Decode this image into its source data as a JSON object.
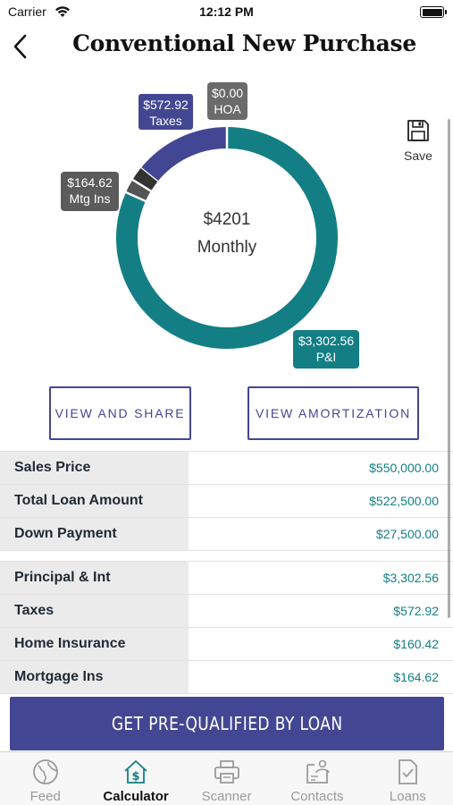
{
  "status_bar": {
    "carrier": "Carrier",
    "time": "12:12 PM"
  },
  "header": {
    "title": "Conventional New Purchase"
  },
  "chart_data": {
    "type": "pie",
    "style": "donut",
    "center_value": "$4201",
    "center_label": "Monthly",
    "slices": [
      {
        "label": "P&I",
        "value_text": "$3,302.56",
        "value": 3302.56,
        "color": "#137f85"
      },
      {
        "label": "Mtg Ins",
        "value_text": "$164.62",
        "value": 164.62,
        "color": "#555555"
      },
      {
        "label": "HOA",
        "value_text": "$0.00",
        "value": 0.0,
        "color": "#6b6b6b"
      },
      {
        "label": "Taxes",
        "value_text": "$572.92",
        "value": 572.92,
        "color": "#434793"
      }
    ],
    "inline_divider_color": "#333333"
  },
  "actions": {
    "save_label": "Save",
    "view_share": "VIEW AND SHARE",
    "view_amortization": "VIEW AMORTIZATION"
  },
  "loan_summary": [
    {
      "label": "Sales Price",
      "value": "$550,000.00"
    },
    {
      "label": "Total Loan Amount",
      "value": "$522,500.00"
    },
    {
      "label": "Down Payment",
      "value": "$27,500.00"
    }
  ],
  "payment_breakdown": [
    {
      "label": "Principal & Int",
      "value": "$3,302.56"
    },
    {
      "label": "Taxes",
      "value": "$572.92"
    },
    {
      "label": "Home Insurance",
      "value": "$160.42"
    },
    {
      "label": "Mortgage Ins",
      "value": "$164.62"
    }
  ],
  "cta": {
    "label": "GET PRE-QUALIFIED BY LOAN"
  },
  "tabs": [
    {
      "label": "Feed",
      "icon": "globe-icon",
      "active": false
    },
    {
      "label": "Calculator",
      "icon": "house-dollar-icon",
      "active": true
    },
    {
      "label": "Scanner",
      "icon": "printer-icon",
      "active": false
    },
    {
      "label": "Contacts",
      "icon": "contacts-icon",
      "active": false
    },
    {
      "label": "Loans",
      "icon": "document-check-icon",
      "active": false
    }
  ],
  "colors": {
    "accent": "#434793",
    "teal": "#137f85",
    "label_bg": "#ebebeb"
  }
}
